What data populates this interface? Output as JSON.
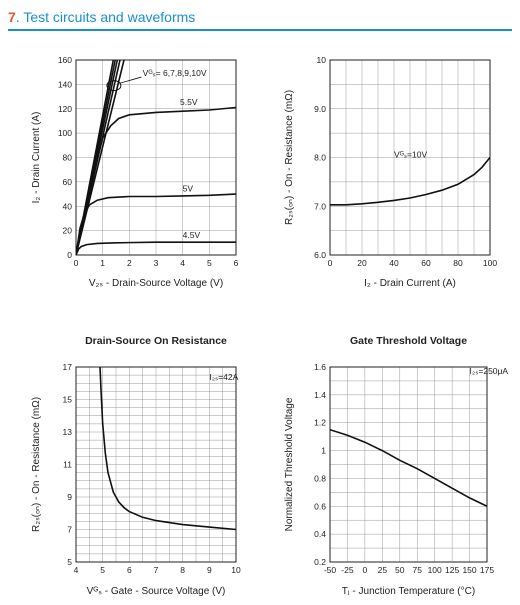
{
  "section": {
    "number": "7",
    "title": "Test circuits and waveforms"
  },
  "chart_data": [
    {
      "type": "line",
      "title": "",
      "xlabel": "V₂ₛ - Drain-Source Voltage (V)",
      "ylabel": "I₂ - Drain Current (A)",
      "xlim": [
        0,
        6
      ],
      "ylim": [
        0,
        160
      ],
      "xticks": [
        0,
        1,
        2,
        3,
        4,
        5,
        6
      ],
      "yticks": [
        0,
        20,
        40,
        60,
        80,
        100,
        120,
        140,
        160
      ],
      "grid": true,
      "annotations": [
        {
          "text": "Vᴳₛ= 6,7,8,9,10V",
          "x": 2.5,
          "y": 147
        },
        {
          "text": "5.5V",
          "x": 3.9,
          "y": 123
        },
        {
          "text": "5V",
          "x": 4.0,
          "y": 52
        },
        {
          "text": "4.5V",
          "x": 4.0,
          "y": 14
        }
      ],
      "series": [
        {
          "name": "10V",
          "x": [
            0,
            1.4
          ],
          "y": [
            0,
            160
          ]
        },
        {
          "name": "9V",
          "x": [
            0,
            1.47
          ],
          "y": [
            0,
            160
          ]
        },
        {
          "name": "8V",
          "x": [
            0,
            1.55
          ],
          "y": [
            0,
            160
          ]
        },
        {
          "name": "7V",
          "x": [
            0,
            1.65
          ],
          "y": [
            0,
            160
          ]
        },
        {
          "name": "6V",
          "x": [
            0,
            1.8
          ],
          "y": [
            0,
            160
          ]
        },
        {
          "name": "5.5V",
          "x": [
            0,
            0.3,
            0.6,
            1.0,
            1.3,
            1.6,
            2.0,
            3.0,
            4.0,
            5.0,
            6.0
          ],
          "y": [
            0,
            32,
            62,
            96,
            106,
            112,
            115,
            117,
            118,
            119,
            121
          ]
        },
        {
          "name": "5V",
          "x": [
            0,
            0.15,
            0.3,
            0.5,
            0.8,
            1.2,
            2.0,
            3.0,
            4.0,
            5.0,
            6.0
          ],
          "y": [
            0,
            22,
            33,
            41,
            45,
            47,
            48,
            48,
            48.5,
            49,
            50
          ]
        },
        {
          "name": "4.5V",
          "x": [
            0,
            0.1,
            0.2,
            0.4,
            0.8,
            1.5,
            3.0,
            4.5,
            6.0
          ],
          "y": [
            0,
            5,
            7,
            8.5,
            9.5,
            10,
            10.5,
            10.5,
            10.5
          ]
        }
      ]
    },
    {
      "type": "line",
      "title": "",
      "xlabel": "I₂ - Drain Current (A)",
      "ylabel": "R₂ₛ(ₒₙ) - On - Resistance (mΩ)",
      "xlim": [
        0,
        100
      ],
      "ylim": [
        6.0,
        10
      ],
      "xticks": [
        0,
        20,
        40,
        60,
        80,
        100
      ],
      "yticks": [
        6.0,
        7.0,
        8.0,
        9.0,
        10
      ],
      "ytick_labels": [
        "6.0",
        "7.0",
        "8.0",
        "9.0",
        "10"
      ],
      "grid": true,
      "annotations": [
        {
          "text": "Vᴳₛ=10V",
          "x": 40,
          "y": 8.0
        }
      ],
      "series": [
        {
          "name": "Vᴳₛ=10V",
          "x": [
            0,
            10,
            20,
            30,
            40,
            50,
            60,
            70,
            80,
            90,
            95,
            100
          ],
          "y": [
            7.03,
            7.03,
            7.05,
            7.08,
            7.12,
            7.17,
            7.24,
            7.33,
            7.45,
            7.65,
            7.8,
            8.0
          ]
        }
      ]
    },
    {
      "type": "line",
      "title": "Drain-Source On Resistance",
      "xlabel": "Vᴳₛ - Gate - Source Voltage (V)",
      "ylabel": "R₂ₛ(ₒₙ) - On - Resistance (mΩ)",
      "xlim": [
        4,
        10
      ],
      "ylim": [
        5,
        17
      ],
      "xticks": [
        4,
        5,
        6,
        7,
        8,
        9,
        10
      ],
      "yticks": [
        5,
        7,
        9,
        11,
        13,
        15,
        17
      ],
      "grid": true,
      "annotations": [
        {
          "text": "I₂ₛ=42A",
          "x": 9,
          "y": 16.2
        }
      ],
      "series": [
        {
          "name": "I₂ₛ=42A",
          "x": [
            4.9,
            4.95,
            5.0,
            5.1,
            5.2,
            5.4,
            5.6,
            5.8,
            6.0,
            6.5,
            7.0,
            8.0,
            9.0,
            10.0
          ],
          "y": [
            17,
            15.2,
            13.5,
            11.7,
            10.5,
            9.3,
            8.7,
            8.35,
            8.1,
            7.75,
            7.55,
            7.3,
            7.15,
            7.0
          ]
        }
      ]
    },
    {
      "type": "line",
      "title": "Gate Threshold Voltage",
      "xlabel": "Tⱼ - Junction Temperature (°C)",
      "ylabel": "Normalized Threshold Voltage",
      "xlim": [
        -50,
        175
      ],
      "ylim": [
        0.2,
        1.6
      ],
      "xticks": [
        -50,
        -25,
        0,
        25,
        50,
        75,
        100,
        125,
        150,
        175
      ],
      "yticks": [
        0.2,
        0.4,
        0.6,
        0.8,
        1.0,
        1.2,
        1.4,
        1.6
      ],
      "grid": true,
      "annotations": [
        {
          "text": "I₂ₛ=250μA",
          "x": 150,
          "y": 1.55
        }
      ],
      "series": [
        {
          "name": "I₂ₛ=250μA",
          "x": [
            -50,
            -25,
            0,
            25,
            50,
            75,
            100,
            125,
            150,
            175
          ],
          "y": [
            1.15,
            1.11,
            1.06,
            1.0,
            0.93,
            0.87,
            0.8,
            0.73,
            0.66,
            0.6
          ]
        }
      ]
    }
  ]
}
